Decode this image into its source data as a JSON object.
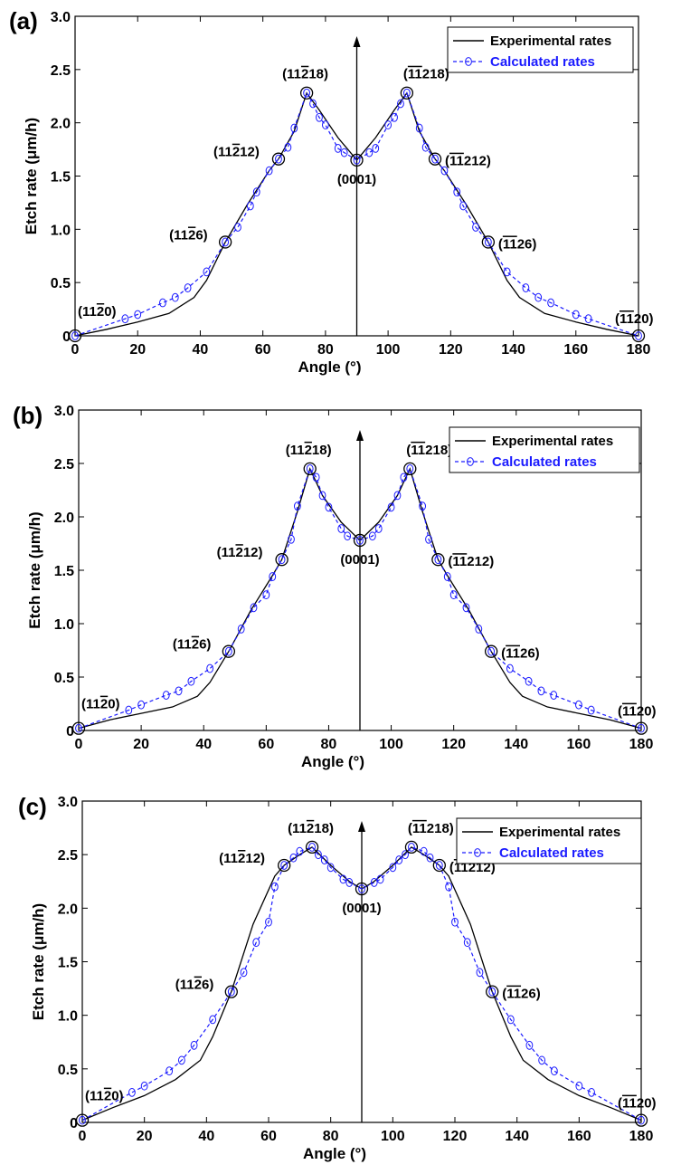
{
  "chart_data": [
    {
      "type": "line",
      "panel": "(a)",
      "xlabel": "Angle (°)",
      "ylabel": "Etch rate (μm/h)",
      "xlim": [
        0,
        180
      ],
      "ylim": [
        0,
        3.0
      ],
      "xticks": [
        0,
        20,
        40,
        60,
        80,
        100,
        120,
        140,
        160,
        180
      ],
      "yticks": [
        0,
        0.5,
        1.0,
        1.5,
        2.0,
        2.5,
        3.0
      ],
      "ytick_labels": [
        "0",
        "0.5",
        "1.0",
        "1.5",
        "2.0",
        "2.5",
        "3.0"
      ],
      "legend_position": "top-right",
      "series": [
        {
          "name": "Experimental rates",
          "color": "#000000",
          "x": [
            0,
            10,
            20,
            30,
            38,
            42,
            48,
            55,
            62,
            65,
            70,
            74,
            78,
            84,
            90,
            96,
            102,
            106,
            110,
            115,
            118,
            125,
            132,
            138,
            142,
            150,
            160,
            170,
            180
          ],
          "y": [
            0,
            0.06,
            0.13,
            0.21,
            0.36,
            0.52,
            0.88,
            1.23,
            1.55,
            1.66,
            1.92,
            2.28,
            2.12,
            1.86,
            1.65,
            1.86,
            2.12,
            2.28,
            1.92,
            1.66,
            1.55,
            1.23,
            0.88,
            0.52,
            0.36,
            0.21,
            0.13,
            0.06,
            0
          ]
        },
        {
          "name": "Calculated rates",
          "color": "#1a1aff",
          "x": [
            0,
            16,
            20,
            28,
            32,
            36,
            42,
            48,
            52,
            56,
            58,
            62,
            65,
            68,
            70,
            74,
            76,
            78,
            80,
            84,
            86,
            90,
            94,
            96,
            100,
            102,
            104,
            106,
            110,
            112,
            115,
            118,
            122,
            124,
            128,
            132,
            138,
            144,
            148,
            152,
            160,
            164,
            180
          ],
          "y": [
            0,
            0.16,
            0.2,
            0.31,
            0.36,
            0.45,
            0.6,
            0.88,
            1.02,
            1.22,
            1.35,
            1.55,
            1.66,
            1.77,
            1.95,
            2.28,
            2.18,
            2.05,
            1.98,
            1.76,
            1.72,
            1.65,
            1.72,
            1.76,
            1.98,
            2.05,
            2.18,
            2.28,
            1.95,
            1.77,
            1.66,
            1.55,
            1.35,
            1.22,
            1.02,
            0.88,
            0.6,
            0.45,
            0.36,
            0.31,
            0.2,
            0.16,
            0
          ]
        }
      ],
      "planes": [
        {
          "x": 0,
          "y": 0,
          "pre": "(11",
          "bar": "2",
          "post": "0)",
          "bars": "single"
        },
        {
          "x": 48,
          "y": 0.88,
          "pre": "(11",
          "bar": "2",
          "post": "6)",
          "bars": "single"
        },
        {
          "x": 65,
          "y": 1.66,
          "pre": "(11",
          "bar": "2",
          "post": "12)",
          "bars": "single"
        },
        {
          "x": 74,
          "y": 2.28,
          "pre": "(11",
          "bar": "2",
          "post": "18)",
          "bars": "single"
        },
        {
          "x": 90,
          "y": 1.65,
          "pre": "(0001)",
          "bar": "",
          "post": "",
          "bars": "none"
        },
        {
          "x": 106,
          "y": 2.28,
          "pre": "(",
          "bar": "11",
          "post": "218)",
          "bars": "double"
        },
        {
          "x": 115,
          "y": 1.66,
          "pre": "(",
          "bar": "11",
          "post": "212)",
          "bars": "double"
        },
        {
          "x": 132,
          "y": 0.88,
          "pre": "(",
          "bar": "11",
          "post": "26)",
          "bars": "double"
        },
        {
          "x": 180,
          "y": 0,
          "pre": "(",
          "bar": "11",
          "post": "20)",
          "bars": "double"
        }
      ]
    },
    {
      "type": "line",
      "panel": "(b)",
      "xlabel": "Angle (°)",
      "ylabel": "Etch rate (μm/h)",
      "xlim": [
        0,
        180
      ],
      "ylim": [
        0,
        3.0
      ],
      "xticks": [
        0,
        20,
        40,
        60,
        80,
        100,
        120,
        140,
        160,
        180
      ],
      "yticks": [
        0,
        0.5,
        1.0,
        1.5,
        2.0,
        2.5,
        3.0
      ],
      "ytick_labels": [
        "0",
        "0.5",
        "1.0",
        "1.5",
        "2.0",
        "2.5",
        "3.0"
      ],
      "legend_position": "top-right",
      "series": [
        {
          "name": "Experimental rates",
          "color": "#000000",
          "x": [
            0,
            10,
            20,
            30,
            38,
            42,
            48,
            55,
            62,
            65,
            70,
            74,
            78,
            84,
            90,
            96,
            102,
            106,
            110,
            115,
            118,
            125,
            132,
            138,
            142,
            150,
            160,
            170,
            180
          ],
          "y": [
            0.02,
            0.1,
            0.16,
            0.22,
            0.32,
            0.45,
            0.74,
            1.12,
            1.45,
            1.6,
            2.05,
            2.45,
            2.2,
            1.95,
            1.78,
            1.95,
            2.2,
            2.45,
            2.05,
            1.6,
            1.45,
            1.12,
            0.74,
            0.45,
            0.32,
            0.22,
            0.16,
            0.1,
            0.02
          ]
        },
        {
          "name": "Calculated rates",
          "color": "#1a1aff",
          "x": [
            0,
            16,
            20,
            28,
            32,
            36,
            42,
            48,
            52,
            56,
            60,
            62,
            65,
            68,
            70,
            74,
            76,
            78,
            80,
            84,
            86,
            90,
            94,
            96,
            100,
            102,
            104,
            106,
            110,
            112,
            115,
            118,
            120,
            124,
            128,
            132,
            138,
            144,
            148,
            152,
            160,
            164,
            180
          ],
          "y": [
            0.02,
            0.19,
            0.24,
            0.33,
            0.37,
            0.46,
            0.58,
            0.74,
            0.95,
            1.15,
            1.27,
            1.44,
            1.6,
            1.79,
            2.1,
            2.45,
            2.37,
            2.2,
            2.09,
            1.89,
            1.82,
            1.78,
            1.82,
            1.89,
            2.09,
            2.2,
            2.37,
            2.45,
            2.1,
            1.79,
            1.6,
            1.44,
            1.27,
            1.15,
            0.95,
            0.74,
            0.58,
            0.46,
            0.37,
            0.33,
            0.24,
            0.19,
            0.02
          ]
        }
      ],
      "planes": [
        {
          "x": 0,
          "y": 0.02,
          "pre": "(11",
          "bar": "2",
          "post": "0)",
          "bars": "single"
        },
        {
          "x": 48,
          "y": 0.74,
          "pre": "(11",
          "bar": "2",
          "post": "6)",
          "bars": "single"
        },
        {
          "x": 65,
          "y": 1.6,
          "pre": "(11",
          "bar": "2",
          "post": "12)",
          "bars": "single"
        },
        {
          "x": 74,
          "y": 2.45,
          "pre": "(11",
          "bar": "2",
          "post": "18)",
          "bars": "single"
        },
        {
          "x": 90,
          "y": 1.78,
          "pre": "(0001)",
          "bar": "",
          "post": "",
          "bars": "none"
        },
        {
          "x": 106,
          "y": 2.45,
          "pre": "(",
          "bar": "11",
          "post": "218)",
          "bars": "double"
        },
        {
          "x": 115,
          "y": 1.6,
          "pre": "(",
          "bar": "11",
          "post": "212)",
          "bars": "double"
        },
        {
          "x": 132,
          "y": 0.74,
          "pre": "(",
          "bar": "11",
          "post": "26)",
          "bars": "double"
        },
        {
          "x": 180,
          "y": 0.02,
          "pre": "(",
          "bar": "11",
          "post": "20)",
          "bars": "double"
        }
      ]
    },
    {
      "type": "line",
      "panel": "(c)",
      "xlabel": "Angle (°)",
      "ylabel": "Etch rate (μm/h)",
      "xlim": [
        0,
        180
      ],
      "ylim": [
        0,
        3.0
      ],
      "xticks": [
        0,
        20,
        40,
        60,
        80,
        100,
        120,
        140,
        160,
        180
      ],
      "yticks": [
        0,
        0.5,
        1.0,
        1.5,
        2.0,
        2.5,
        3.0
      ],
      "ytick_labels": [
        "0",
        "0.5",
        "1.0",
        "1.5",
        "2.0",
        "2.5",
        "3.0"
      ],
      "legend_position": "top-right",
      "series": [
        {
          "name": "Experimental rates",
          "color": "#000000",
          "x": [
            0,
            10,
            20,
            30,
            38,
            42,
            48,
            55,
            62,
            65,
            70,
            74,
            80,
            86,
            90,
            94,
            100,
            106,
            110,
            115,
            118,
            125,
            132,
            138,
            142,
            150,
            160,
            170,
            180
          ],
          "y": [
            0.02,
            0.14,
            0.25,
            0.4,
            0.58,
            0.8,
            1.22,
            1.85,
            2.3,
            2.4,
            2.5,
            2.57,
            2.4,
            2.25,
            2.18,
            2.25,
            2.4,
            2.57,
            2.5,
            2.4,
            2.3,
            1.85,
            1.22,
            0.8,
            0.58,
            0.4,
            0.25,
            0.14,
            0.02
          ]
        },
        {
          "name": "Calculated rates",
          "color": "#1a1aff",
          "x": [
            0,
            16,
            20,
            28,
            32,
            36,
            42,
            48,
            52,
            56,
            60,
            62,
            65,
            68,
            70,
            74,
            76,
            78,
            80,
            84,
            86,
            90,
            94,
            96,
            100,
            102,
            104,
            106,
            110,
            112,
            115,
            118,
            120,
            124,
            128,
            132,
            138,
            144,
            148,
            152,
            160,
            164,
            180
          ],
          "y": [
            0.02,
            0.28,
            0.34,
            0.48,
            0.58,
            0.72,
            0.96,
            1.22,
            1.4,
            1.68,
            1.87,
            2.2,
            2.4,
            2.47,
            2.53,
            2.57,
            2.5,
            2.45,
            2.38,
            2.27,
            2.24,
            2.18,
            2.24,
            2.27,
            2.38,
            2.45,
            2.5,
            2.57,
            2.53,
            2.47,
            2.4,
            2.2,
            1.87,
            1.68,
            1.4,
            1.22,
            0.96,
            0.72,
            0.58,
            0.48,
            0.34,
            0.28,
            0.02
          ]
        }
      ],
      "planes": [
        {
          "x": 0,
          "y": 0.02,
          "pre": "(11",
          "bar": "2",
          "post": "0)",
          "bars": "single"
        },
        {
          "x": 48,
          "y": 1.22,
          "pre": "(11",
          "bar": "2",
          "post": "6)",
          "bars": "single"
        },
        {
          "x": 65,
          "y": 2.4,
          "pre": "(11",
          "bar": "2",
          "post": "12)",
          "bars": "single"
        },
        {
          "x": 74,
          "y": 2.57,
          "pre": "(11",
          "bar": "2",
          "post": "18)",
          "bars": "single"
        },
        {
          "x": 90,
          "y": 2.18,
          "pre": "(0001)",
          "bar": "",
          "post": "",
          "bars": "none"
        },
        {
          "x": 106,
          "y": 2.57,
          "pre": "(",
          "bar": "11",
          "post": "218)",
          "bars": "double"
        },
        {
          "x": 115,
          "y": 2.4,
          "pre": "(",
          "bar": "11",
          "post": "212)",
          "bars": "double"
        },
        {
          "x": 132,
          "y": 1.22,
          "pre": "(",
          "bar": "11",
          "post": "26)",
          "bars": "double"
        },
        {
          "x": 180,
          "y": 0.02,
          "pre": "(",
          "bar": "11",
          "post": "20)",
          "bars": "double"
        }
      ]
    }
  ]
}
